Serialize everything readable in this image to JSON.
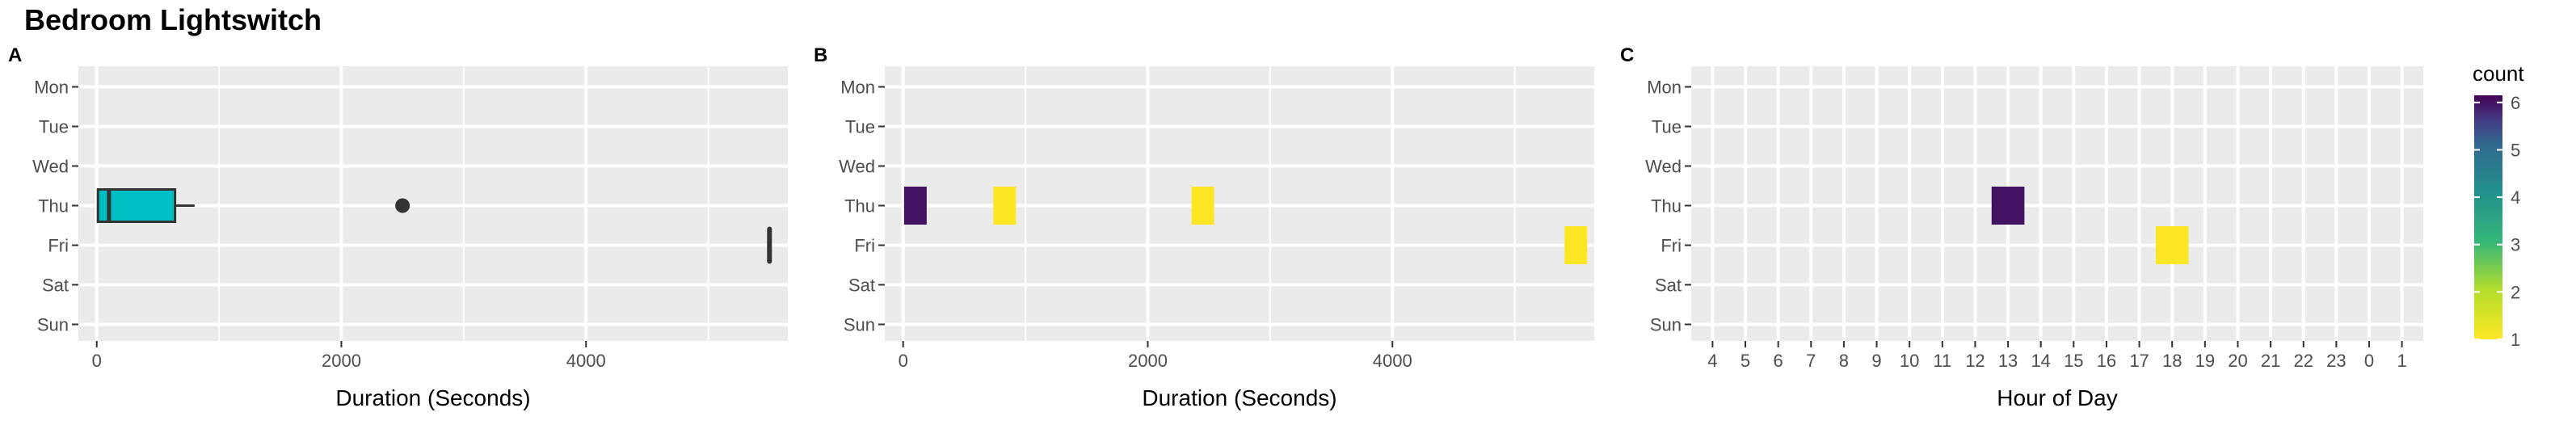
{
  "title": "Bedroom Lightswitch",
  "colors": {
    "panel_bg": "#EBEBEB",
    "grid_major": "#FFFFFF",
    "box_fill": "#00BFC4",
    "box_line": "#333333",
    "viridis_low": "#FDE725",
    "viridis_high": "#440154"
  },
  "chart_data": [
    {
      "tag": "A",
      "type": "boxplot",
      "xlabel": "Duration (Seconds)",
      "ylabel": "",
      "categories": [
        "Mon",
        "Tue",
        "Wed",
        "Thu",
        "Fri",
        "Sat",
        "Sun"
      ],
      "xlim": [
        -150,
        5650
      ],
      "xticks": [
        0,
        2000,
        4000
      ],
      "grid": true,
      "boxes": [
        {
          "category": "Thu",
          "q1": 10,
          "median": 100,
          "q3": 640,
          "whisker_low": 10,
          "whisker_high": 800,
          "outliers": [
            2500
          ]
        },
        {
          "category": "Fri",
          "q1": 5500,
          "median": 5500,
          "q3": 5500,
          "whisker_low": 5500,
          "whisker_high": 5500,
          "outliers": []
        }
      ]
    },
    {
      "tag": "B",
      "type": "heatmap",
      "xlabel": "Duration (Seconds)",
      "ylabel": "",
      "categories": [
        "Mon",
        "Tue",
        "Wed",
        "Thu",
        "Fri",
        "Sat",
        "Sun"
      ],
      "xlim": [
        -150,
        5650
      ],
      "xticks": [
        0,
        2000,
        4000
      ],
      "grid": true,
      "tiles": [
        {
          "category": "Thu",
          "x": 100,
          "count": 6
        },
        {
          "category": "Thu",
          "x": 830,
          "count": 1
        },
        {
          "category": "Thu",
          "x": 2450,
          "count": 1
        },
        {
          "category": "Fri",
          "x": 5500,
          "count": 1
        }
      ]
    },
    {
      "tag": "C",
      "type": "heatmap",
      "xlabel": "Hour of Day",
      "ylabel": "",
      "categories": [
        "Mon",
        "Tue",
        "Wed",
        "Thu",
        "Fri",
        "Sat",
        "Sun"
      ],
      "hours": [
        "4",
        "5",
        "6",
        "7",
        "8",
        "9",
        "10",
        "11",
        "12",
        "13",
        "14",
        "15",
        "16",
        "17",
        "18",
        "19",
        "20",
        "21",
        "22",
        "23",
        "0",
        "1"
      ],
      "grid": true,
      "tiles": [
        {
          "category": "Thu",
          "hour": "13",
          "count": 6
        },
        {
          "category": "Fri",
          "hour": "18",
          "count": 1
        }
      ]
    }
  ],
  "legend": {
    "title": "count",
    "position": "right",
    "range": [
      1,
      6.15
    ],
    "ticks": [
      1,
      2,
      3,
      4,
      5,
      6
    ],
    "tick_labels": [
      "1",
      "2",
      "3",
      "4",
      "5",
      "6"
    ]
  }
}
